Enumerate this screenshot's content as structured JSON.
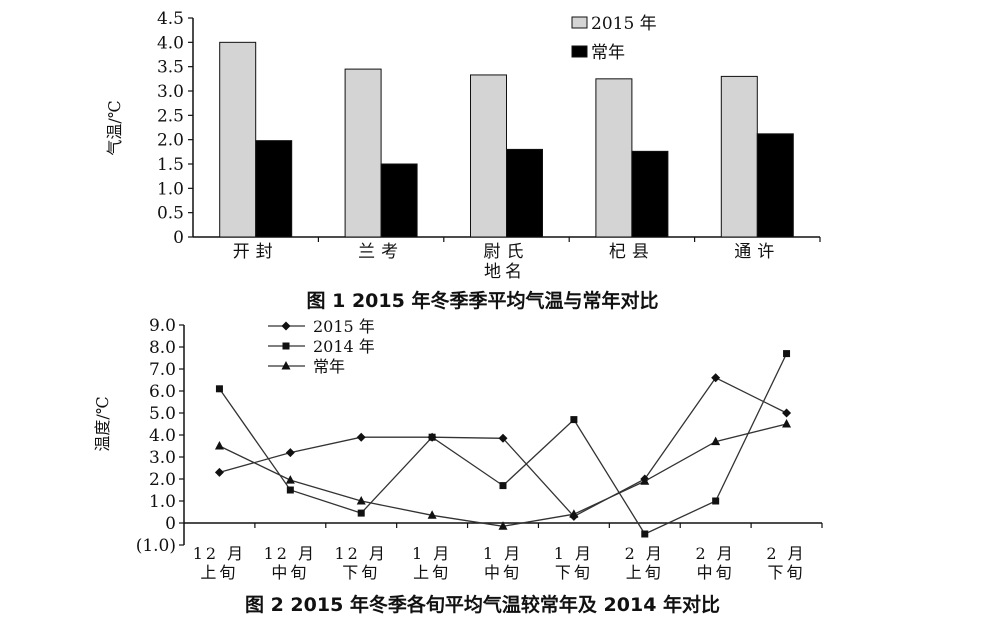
{
  "figures": [
    {
      "caption": "图 1    2015 年冬季季平均气温与常年对比",
      "chart_data": {
        "type": "bar",
        "title": "",
        "xlabel": "地名",
        "ylabel": "气温/℃",
        "categories": [
          "开封",
          "兰考",
          "尉氏",
          "杞县",
          "通许"
        ],
        "series": [
          {
            "name": "2015 年",
            "color": "#d4d4d4",
            "values": [
              4.0,
              3.45,
              3.33,
              3.25,
              3.3
            ]
          },
          {
            "name": "常年",
            "color": "#000000",
            "values": [
              1.98,
              1.5,
              1.8,
              1.76,
              2.12
            ]
          }
        ],
        "ylim": [
          0,
          4.5
        ],
        "yticks": [
          "0",
          "0.5",
          "1.0",
          "1.5",
          "2.0",
          "2.5",
          "3.0",
          "3.5",
          "4.0",
          "4.5"
        ],
        "grid": false,
        "legend": "top-right"
      }
    },
    {
      "caption": "图 2    2015 年冬季各旬平均气温较常年及 2014 年对比",
      "chart_data": {
        "type": "line",
        "title": "",
        "xlabel": "",
        "ylabel": "温度/℃",
        "categories": [
          [
            "12 月",
            "上旬"
          ],
          [
            "12 月",
            "中旬"
          ],
          [
            "12 月",
            "下旬"
          ],
          [
            "1 月",
            "上旬"
          ],
          [
            "1 月",
            "中旬"
          ],
          [
            "1 月",
            "下旬"
          ],
          [
            "2 月",
            "上旬"
          ],
          [
            "2 月",
            "中旬"
          ],
          [
            "2 月",
            "下旬"
          ]
        ],
        "series": [
          {
            "name": "2015 年",
            "marker": "diamond",
            "values": [
              2.3,
              3.2,
              3.9,
              3.9,
              3.85,
              0.3,
              2.0,
              6.6,
              5.0
            ]
          },
          {
            "name": "2014 年",
            "marker": "square",
            "values": [
              6.1,
              1.5,
              0.45,
              3.9,
              1.7,
              4.7,
              -0.5,
              1.0,
              7.7
            ]
          },
          {
            "name": "常年",
            "marker": "triangle",
            "values": [
              3.5,
              1.95,
              1.0,
              0.35,
              -0.15,
              0.4,
              1.9,
              3.7,
              4.5
            ]
          }
        ],
        "ylim": [
          -1.0,
          9.0
        ],
        "yticks": [
          "(1.0)",
          "0",
          "1.0",
          "2.0",
          "3.0",
          "4.0",
          "5.0",
          "6.0",
          "7.0",
          "8.0",
          "9.0"
        ],
        "grid": false,
        "legend": "top-left"
      }
    }
  ]
}
